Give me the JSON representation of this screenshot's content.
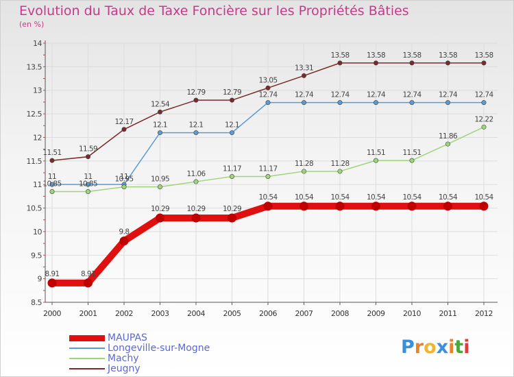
{
  "header": {
    "title": "Evolution du Taux de Taxe Foncière sur les Propriétés Bâties",
    "unit": "(en %)"
  },
  "logo": {
    "text": "Proxiti",
    "letters": [
      "P",
      "r",
      "o",
      "x",
      "i",
      "t",
      "i"
    ],
    "colors": [
      "#3a8fd8",
      "#e8822b",
      "#f0b62e",
      "#3a8fd8",
      "#e8822b",
      "#49a83d",
      "#e03a3a"
    ]
  },
  "chart_data": {
    "type": "line",
    "title": "Evolution du Taux de Taxe Foncière sur les Propriétés Bâties",
    "ylabel": "(en %)",
    "xlabel": "",
    "x": [
      "2000",
      "2001",
      "2002",
      "2003",
      "2004",
      "2005",
      "2006",
      "2007",
      "2008",
      "2009",
      "2010",
      "2011",
      "2012"
    ],
    "ylim": [
      8.5,
      14
    ],
    "yticks": [
      "8.5",
      "9",
      "9.5",
      "10",
      "10.5",
      "11",
      "11.5",
      "12",
      "12.5",
      "13",
      "13.5",
      "14"
    ],
    "grid": true,
    "legend": "bottom-left",
    "series": [
      {
        "name": "Jeugny",
        "color": "#7a2a2a",
        "values": [
          11.51,
          11.59,
          12.17,
          12.54,
          12.79,
          12.79,
          13.05,
          13.31,
          13.58,
          13.58,
          13.58,
          13.58,
          13.58
        ],
        "labels": [
          "11.51",
          "11.59",
          "12.17",
          "12.54",
          "12.79",
          "12.79",
          "13.05",
          "13.31",
          "13.58",
          "13.58",
          "13.58",
          "13.58",
          "13.58"
        ]
      },
      {
        "name": "Longeville-sur-Mogne",
        "color": "#5b9bd5",
        "values": [
          11,
          11,
          11,
          12.1,
          12.1,
          12.1,
          12.74,
          12.74,
          12.74,
          12.74,
          12.74,
          12.74,
          12.74
        ],
        "labels": [
          "11",
          "11",
          "11",
          "12.1",
          "12.1",
          "12.1",
          "12.74",
          "12.74",
          "12.74",
          "12.74",
          "12.74",
          "12.74",
          "12.74"
        ]
      },
      {
        "name": "Machy",
        "color": "#9dd67a",
        "values": [
          10.85,
          10.85,
          10.95,
          10.95,
          11.06,
          11.17,
          11.17,
          11.28,
          11.28,
          11.51,
          11.51,
          11.86,
          12.22
        ],
        "labels": [
          "10.85",
          "10.85",
          "10.95",
          "10.95",
          "11.06",
          "11.17",
          "11.17",
          "11.28",
          "11.28",
          "11.51",
          "11.51",
          "11.86",
          "12.22"
        ]
      },
      {
        "name": "MAUPAS",
        "color": "#e01010",
        "values": [
          8.91,
          8.91,
          9.8,
          10.29,
          10.29,
          10.29,
          10.54,
          10.54,
          10.54,
          10.54,
          10.54,
          10.54,
          10.54
        ],
        "labels": [
          "8.91",
          "8.91",
          "9.8",
          "10.29",
          "10.29",
          "10.29",
          "10.54",
          "10.54",
          "10.54",
          "10.54",
          "10.54",
          "10.54",
          "10.54"
        ]
      }
    ],
    "legend_entries": [
      {
        "name": "MAUPAS",
        "color": "#e01010",
        "thick": true
      },
      {
        "name": "Longeville-sur-Mogne",
        "color": "#5b9bd5",
        "thick": false
      },
      {
        "name": "Machy",
        "color": "#9dd67a",
        "thick": false
      },
      {
        "name": "Jeugny",
        "color": "#7a2a2a",
        "thick": false
      }
    ]
  }
}
